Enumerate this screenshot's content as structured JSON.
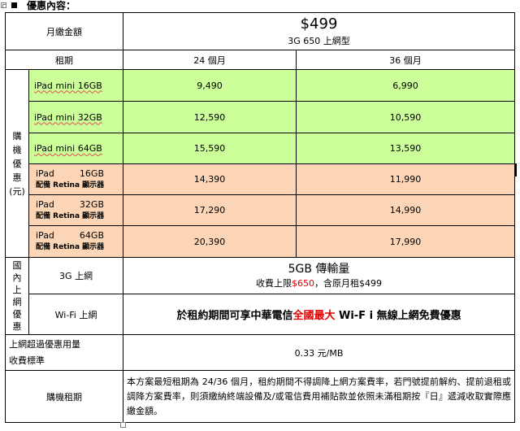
{
  "heading": "優惠內容：",
  "header": {
    "monthly_label": "月繳金額",
    "price": "$499",
    "plan": "3G 650 上網型",
    "term_label": "租期",
    "col1": "24 個月",
    "col2": "36 個月"
  },
  "purchase_label_chars": [
    "購",
    "機",
    "優",
    "惠",
    "(元)"
  ],
  "devices": [
    {
      "name": "iPad mini 16GB",
      "p24": "9,490",
      "p36": "6,990"
    },
    {
      "name": "iPad mini 32GB",
      "p24": "12,590",
      "p36": "10,590"
    },
    {
      "name": "iPad mini 64GB",
      "p24": "15,590",
      "p36": "13,590"
    }
  ],
  "retina_devices": [
    {
      "name": "iPad",
      "size": "16GB",
      "sub": "配備 Retina 顯示器",
      "p24": "14,390",
      "p36": "11,990"
    },
    {
      "name": "iPad",
      "size": "32GB",
      "sub": "配備 Retina 顯示器",
      "p24": "17,290",
      "p36": "14,990"
    },
    {
      "name": "iPad",
      "size": "64GB",
      "sub": "配備 Retina 顯示器",
      "p24": "20,390",
      "p36": "17,990"
    }
  ],
  "domestic_label_chars": [
    "國",
    "內",
    "上",
    "網",
    "優",
    "惠"
  ],
  "net3g": {
    "label": "3G 上網",
    "title": "5GB 傳輸量",
    "cap_prefix": "收費上限",
    "cap_value": "$650",
    "cap_suffix": "，含原月租$499"
  },
  "wifi": {
    "label": "Wi-Fi 上網",
    "text_prefix": "於租約期間可享中華電信",
    "text_highlight": "全國最大",
    "text_suffix": " Wi-F i 無線上網免費優惠"
  },
  "overage": {
    "label_line1": "上網超過優惠用量",
    "label_line2": "收費標準",
    "value": "0.33 元/MB"
  },
  "term": {
    "label": "購機租期",
    "text": "本方案最短租期為 24/36 個月，租約期間不得調降上網方案費率，若門號提前解約、提前退租或調降方案費率，則須繳納終端設備及/或電信費用補貼款並依照未滿租期按『日』遞減收取實際應繳金額。"
  },
  "colors": {
    "green": "#ccff99",
    "peach": "#fbd5b5",
    "red": "#e00000"
  }
}
